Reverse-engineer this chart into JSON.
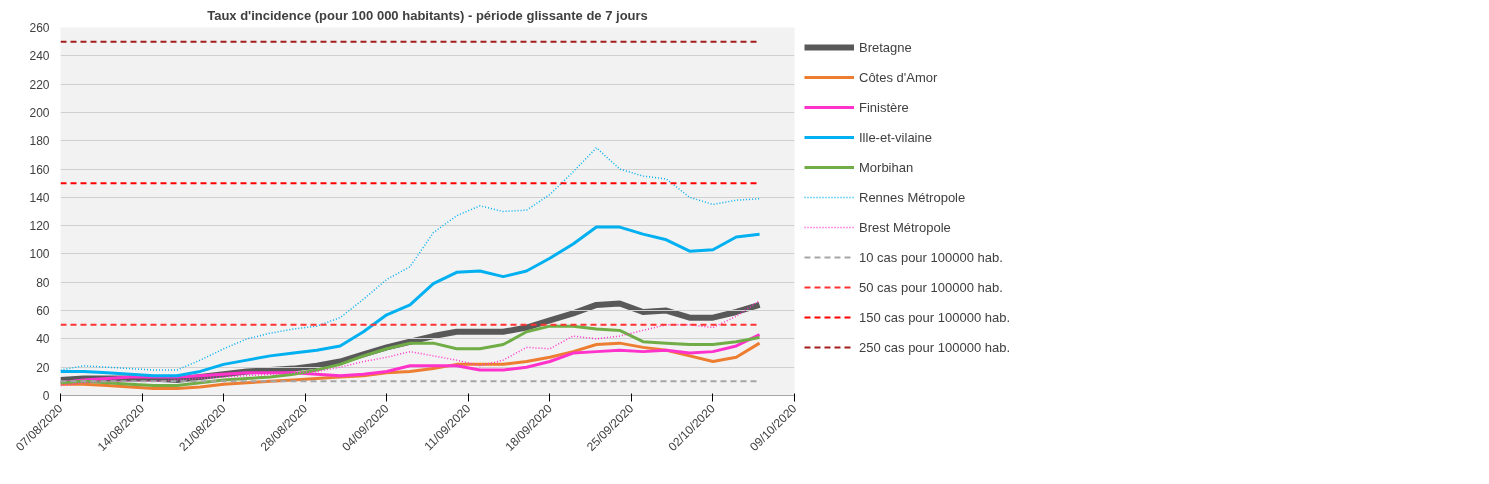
{
  "chart_data": {
    "type": "line",
    "title": "Taux d'incidence (pour 100 000 habitants) - période glissante de 7 jours",
    "x": [
      "2020-08-07",
      "2020-08-09",
      "2020-08-11",
      "2020-08-13",
      "2020-08-15",
      "2020-08-17",
      "2020-08-19",
      "2020-08-21",
      "2020-08-23",
      "2020-08-25",
      "2020-08-27",
      "2020-08-29",
      "2020-08-31",
      "2020-09-02",
      "2020-09-04",
      "2020-09-06",
      "2020-09-08",
      "2020-09-10",
      "2020-09-12",
      "2020-09-14",
      "2020-09-16",
      "2020-09-18",
      "2020-09-20",
      "2020-09-22",
      "2020-09-24",
      "2020-09-26",
      "2020-09-28",
      "2020-09-30",
      "2020-10-02",
      "2020-10-04",
      "2020-10-06"
    ],
    "series": [
      {
        "name": "Bretagne",
        "color": "#595959",
        "line_style": "solid",
        "values": [
          11,
          12,
          12,
          12,
          12,
          11,
          13,
          15,
          17,
          18,
          19,
          21,
          24,
          29,
          34,
          38,
          42,
          45,
          45,
          45,
          48,
          53,
          58,
          64,
          65,
          59,
          60,
          55,
          55,
          59,
          64
        ]
      },
      {
        "name": "Côtes d'Amor",
        "color": "#ed7d31",
        "line_style": "solid",
        "values": [
          8,
          8,
          7,
          6,
          5,
          5,
          6,
          8,
          9,
          10,
          11,
          12,
          13,
          14,
          16,
          17,
          19,
          22,
          22,
          22,
          24,
          27,
          31,
          36,
          37,
          34,
          32,
          28,
          24,
          27,
          37
        ]
      },
      {
        "name": "Finistère",
        "color": "#ff33cc",
        "line_style": "solid",
        "values": [
          9,
          11,
          12,
          13,
          13,
          13,
          14,
          15,
          16,
          16,
          16,
          15,
          14,
          15,
          17,
          21,
          21,
          21,
          18,
          18,
          20,
          24,
          30,
          31,
          32,
          31,
          32,
          30,
          31,
          35,
          43
        ]
      },
      {
        "name": "Ille-et-vilaine",
        "color": "#00b0f0",
        "line_style": "solid",
        "values": [
          17,
          17,
          16,
          15,
          14,
          14,
          17,
          22,
          25,
          28,
          30,
          32,
          35,
          45,
          57,
          64,
          79,
          87,
          88,
          84,
          88,
          97,
          107,
          119,
          119,
          114,
          110,
          102,
          103,
          112,
          114
        ]
      },
      {
        "name": "Morbihan",
        "color": "#70ad47",
        "line_style": "solid",
        "values": [
          9,
          10,
          9,
          8,
          7,
          7,
          9,
          11,
          12,
          13,
          15,
          18,
          22,
          28,
          33,
          37,
          37,
          33,
          33,
          36,
          45,
          49,
          49,
          47,
          46,
          38,
          37,
          36,
          36,
          38,
          41
        ]
      },
      {
        "name": "Rennes Métropole",
        "color": "#00b0f0",
        "line_style": "dotted",
        "values": [
          18,
          21,
          20,
          19,
          18,
          18,
          25,
          33,
          40,
          44,
          47,
          49,
          55,
          68,
          82,
          91,
          115,
          127,
          134,
          130,
          131,
          142,
          158,
          175,
          160,
          155,
          153,
          140,
          135,
          138,
          139
        ]
      },
      {
        "name": "Brest Métropole",
        "color": "#ff33cc",
        "line_style": "dotted",
        "values": [
          7,
          9,
          10,
          10,
          10,
          11,
          12,
          13,
          14,
          15,
          16,
          17,
          20,
          24,
          27,
          31,
          28,
          25,
          21,
          25,
          34,
          33,
          42,
          40,
          42,
          46,
          50,
          50,
          48,
          56,
          67
        ]
      },
      {
        "name": "10 cas pour 100000 hab.",
        "color": "#a6a6a6",
        "line_style": "dashed",
        "x": [
          "2020-08-07",
          "2020-10-06"
        ],
        "values": [
          10,
          10
        ]
      },
      {
        "name": "50 cas pour 100000 hab.",
        "color": "#ff3333",
        "line_style": "dashed",
        "x": [
          "2020-08-07",
          "2020-10-06"
        ],
        "values": [
          50,
          50
        ]
      },
      {
        "name": "150 cas pour 100000 hab.",
        "color": "#ff0000",
        "line_style": "dashed",
        "x": [
          "2020-08-07",
          "2020-10-06"
        ],
        "values": [
          150,
          150
        ]
      },
      {
        "name": "250 cas pour 100000 hab.",
        "color": "#a51c1c",
        "line_style": "dashed",
        "x": [
          "2020-08-07",
          "2020-10-06"
        ],
        "values": [
          250,
          250
        ]
      }
    ],
    "xlim": [
      "2020-08-07",
      "2020-10-09"
    ],
    "xticks": [
      {
        "value": "2020-08-07",
        "label": "07/08/2020"
      },
      {
        "value": "2020-08-14",
        "label": "14/08/2020"
      },
      {
        "value": "2020-08-21",
        "label": "21/08/2020"
      },
      {
        "value": "2020-08-28",
        "label": "28/08/2020"
      },
      {
        "value": "2020-09-04",
        "label": "04/09/2020"
      },
      {
        "value": "2020-09-11",
        "label": "11/09/2020"
      },
      {
        "value": "2020-09-18",
        "label": "18/09/2020"
      },
      {
        "value": "2020-09-25",
        "label": "25/09/2020"
      },
      {
        "value": "2020-10-02",
        "label": "02/10/2020"
      },
      {
        "value": "2020-10-09",
        "label": "09/10/2020"
      }
    ],
    "ylim": [
      0,
      260
    ],
    "yticks": [
      0,
      20,
      40,
      60,
      80,
      100,
      120,
      140,
      160,
      180,
      200,
      220,
      240,
      260
    ],
    "grid": "y",
    "legend": "right"
  }
}
